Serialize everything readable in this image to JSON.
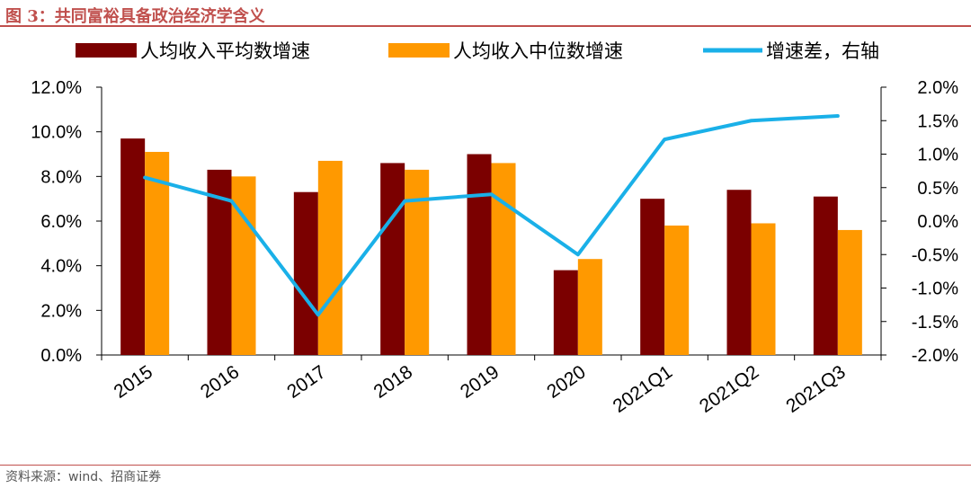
{
  "figure": {
    "title": "图 3：共同富裕具备政治经济学含义",
    "source": "资料来源：wind、招商证券"
  },
  "chart_data": {
    "type": "bar",
    "categories": [
      "2015",
      "2016",
      "2017",
      "2018",
      "2019",
      "2020",
      "2021Q1",
      "2021Q2",
      "2021Q3"
    ],
    "series": [
      {
        "name": "人均收入平均数增速",
        "type": "bar",
        "axis": "left",
        "color": "#7b0000",
        "values": [
          9.7,
          8.3,
          7.3,
          8.6,
          9.0,
          3.8,
          7.0,
          7.4,
          7.1
        ]
      },
      {
        "name": "人均收入中位数增速",
        "type": "bar",
        "axis": "left",
        "color": "#ff9900",
        "values": [
          9.1,
          8.0,
          8.7,
          8.3,
          8.6,
          4.3,
          5.8,
          5.9,
          5.6
        ]
      },
      {
        "name": "增速差，右轴",
        "type": "line",
        "axis": "right",
        "color": "#1ab0e8",
        "values": [
          0.65,
          0.3,
          -1.4,
          0.3,
          0.4,
          -0.5,
          1.22,
          1.5,
          1.57
        ]
      }
    ],
    "y_left": {
      "min": 0,
      "max": 12,
      "step": 2,
      "ticks": [
        "0.0%",
        "2.0%",
        "4.0%",
        "6.0%",
        "8.0%",
        "10.0%",
        "12.0%"
      ]
    },
    "y_right": {
      "min": -2,
      "max": 2,
      "step": 0.5,
      "ticks": [
        "-2.0%",
        "-1.5%",
        "-1.0%",
        "-0.5%",
        "0.0%",
        "0.5%",
        "1.0%",
        "1.5%",
        "2.0%"
      ]
    },
    "legend_position": "top",
    "grid": false
  }
}
